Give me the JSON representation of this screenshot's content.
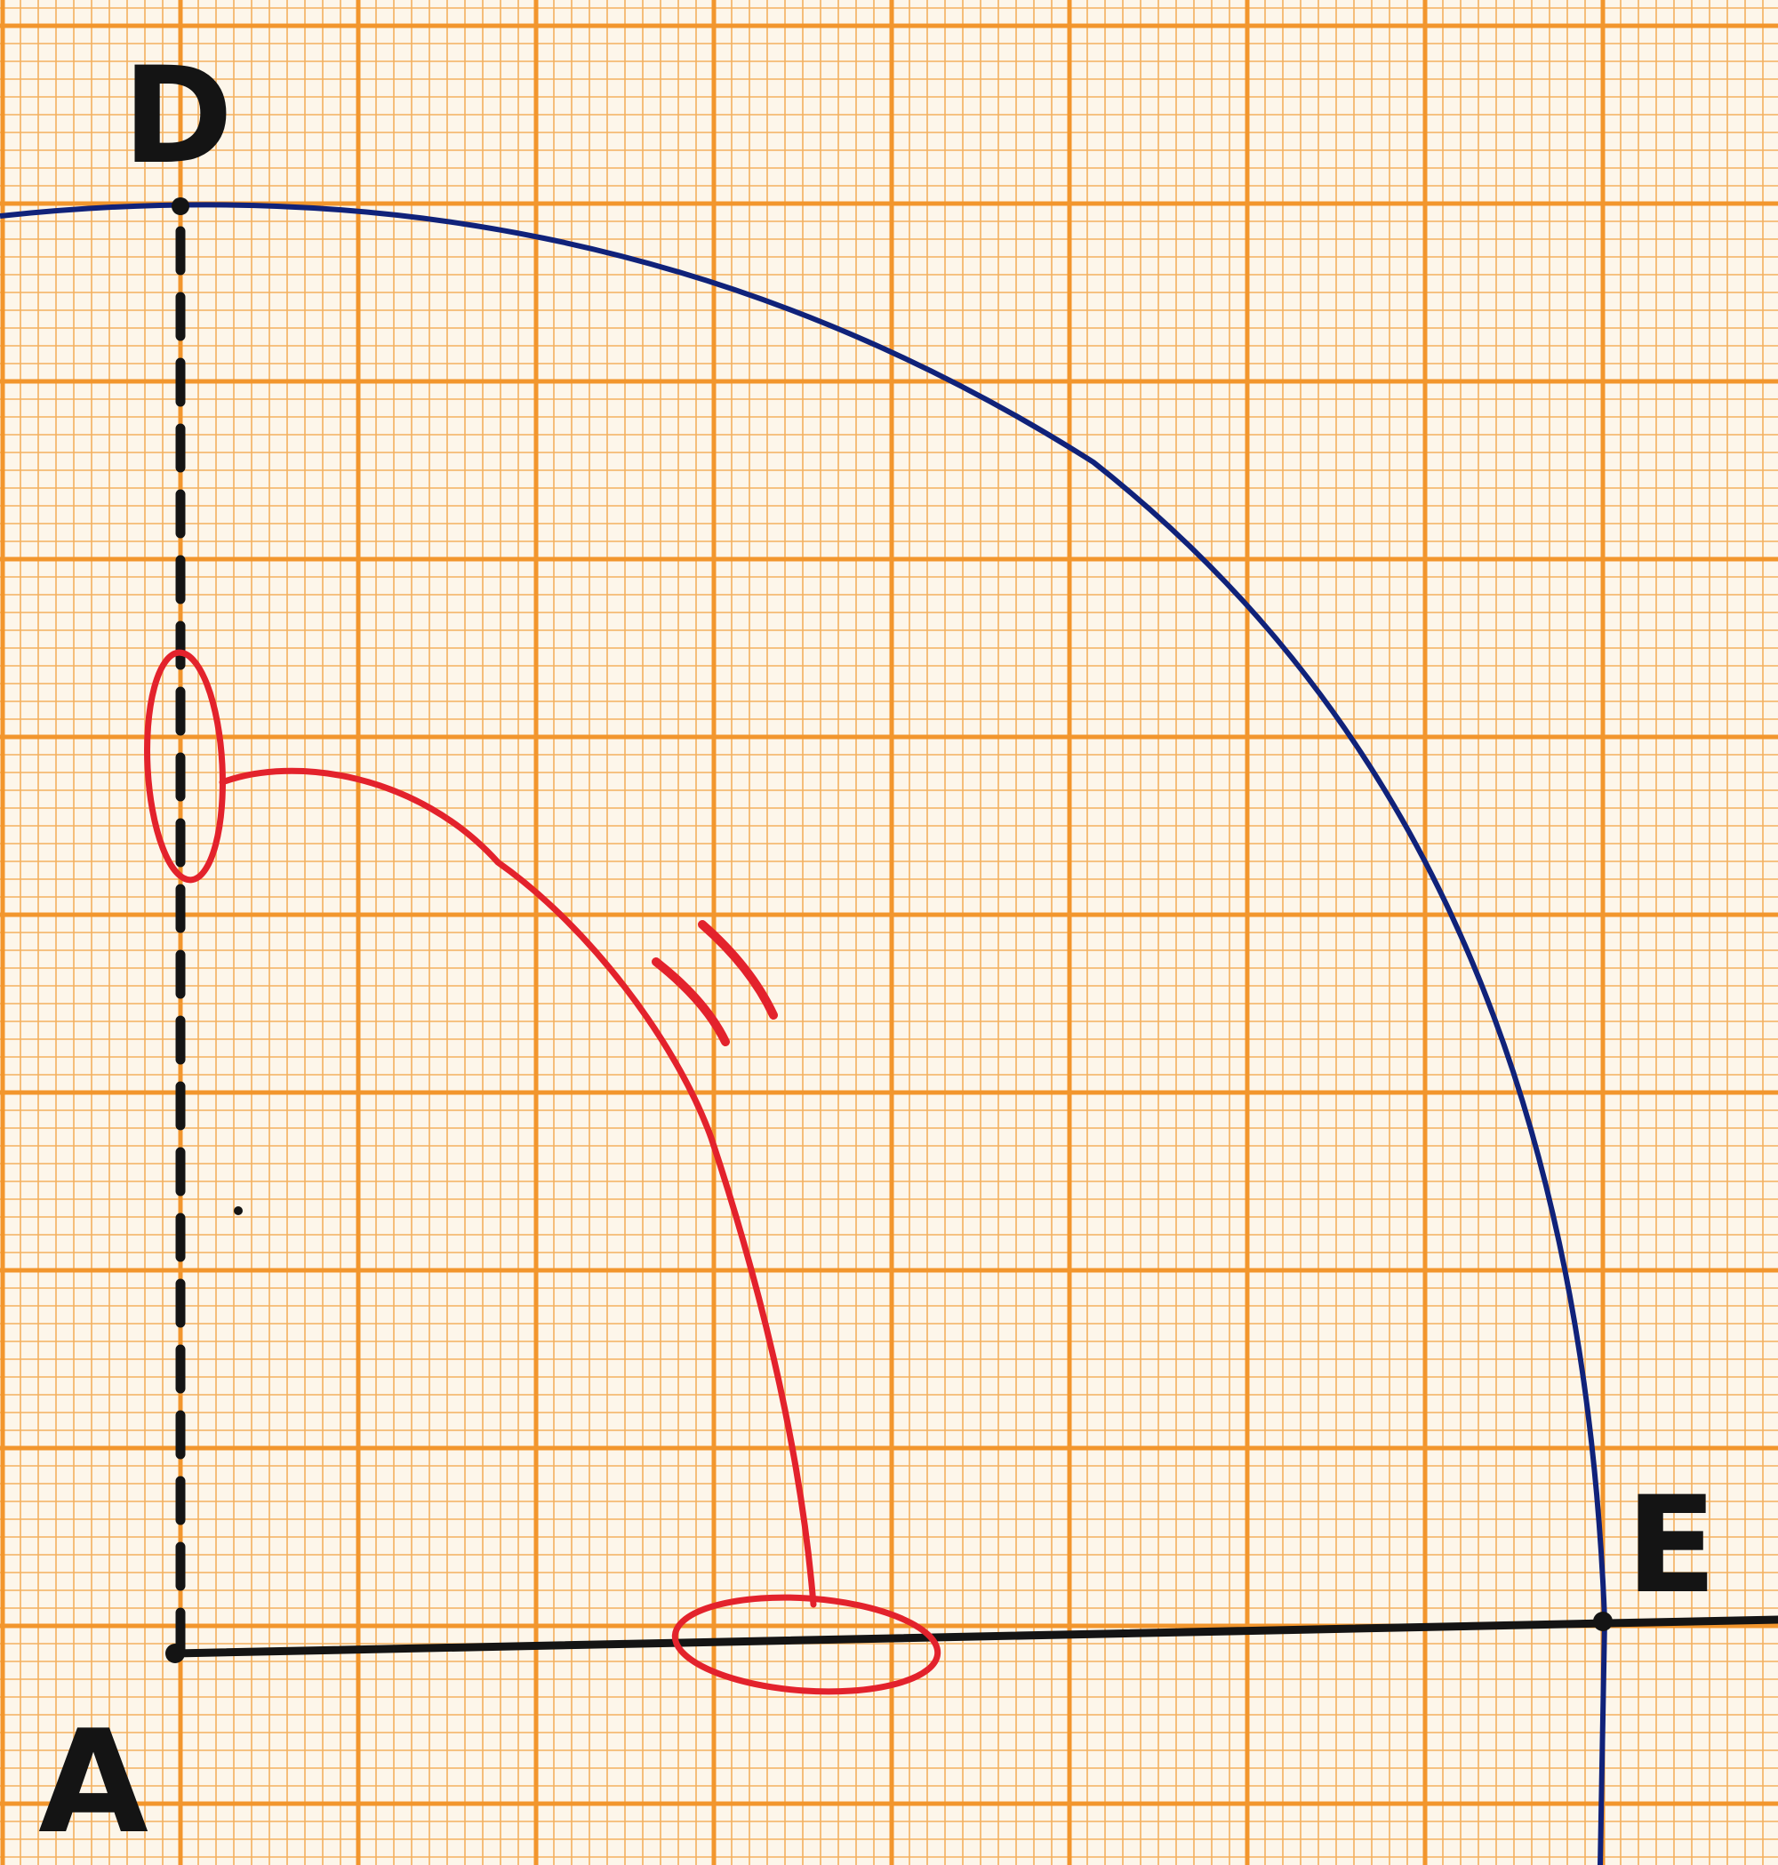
{
  "diagram": {
    "points": {
      "A": "A",
      "D": "D",
      "E": "E"
    },
    "colors": {
      "paper": "#fdf6ea",
      "grid_minor": "#f3b15f",
      "grid_major": "#f2962d",
      "construction": "#141414",
      "arc": "#10227a",
      "annotation": "#e3222c"
    }
  }
}
